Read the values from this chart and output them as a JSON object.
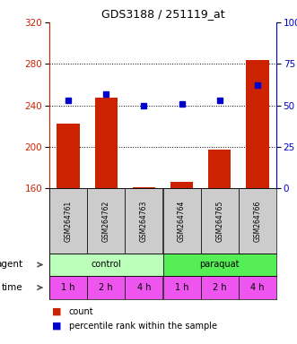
{
  "title": "GDS3188 / 251119_at",
  "samples": [
    "GSM264761",
    "GSM264762",
    "GSM264763",
    "GSM264764",
    "GSM264765",
    "GSM264766"
  ],
  "counts": [
    222,
    247,
    161,
    166,
    197,
    284
  ],
  "percentiles": [
    53,
    57,
    50,
    51,
    53,
    62
  ],
  "ylim_left": [
    160,
    320
  ],
  "ylim_right": [
    0,
    100
  ],
  "yticks_left": [
    160,
    200,
    240,
    280,
    320
  ],
  "yticks_right": [
    0,
    25,
    50,
    75,
    100
  ],
  "bar_color": "#cc2200",
  "dot_color": "#0000cc",
  "agent_labels": [
    "control",
    "paraquat"
  ],
  "agent_colors_light": [
    "#bbffbb",
    "#55ee55"
  ],
  "time_color": "#ee55ee",
  "sample_bg": "#cccccc",
  "grid_color": "#000000",
  "background_color": "#ffffff",
  "left_axis_color": "#cc2200",
  "right_axis_color": "#0000cc",
  "time_labels": [
    "1 h",
    "2 h",
    "4 h",
    "1 h",
    "2 h",
    "4 h"
  ]
}
